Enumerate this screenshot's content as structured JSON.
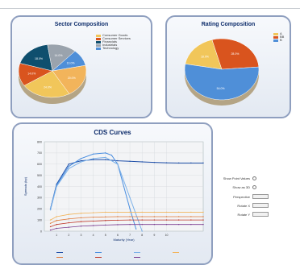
{
  "colors": {
    "pie_palette": [
      "#f1c65a",
      "#d9541e",
      "#0f4f6e",
      "#9aa3ad",
      "#4f8fd8",
      "#f2b45b"
    ],
    "panel_border": "#8f9fbf",
    "title": "#0d2c6b"
  },
  "chart_data": [
    {
      "type": "pie",
      "title": "Sector Composition",
      "legend_position": "right",
      "slices": [
        {
          "name": "Consumer Goods",
          "value": 24,
          "label": "24.0%"
        },
        {
          "name": "Consumer Services",
          "value": 14,
          "label": "14.0%"
        },
        {
          "name": "Financials",
          "value": 18,
          "label": "18.0%"
        },
        {
          "name": "Industrials",
          "value": 14,
          "label": "14.0%"
        },
        {
          "name": "Technology",
          "value": 10,
          "label": "10.0%"
        },
        {
          "name": "",
          "value": 20,
          "label": "20.0%"
        }
      ]
    },
    {
      "type": "pie",
      "title": "Rating Composition",
      "legend_position": "right",
      "slices": [
        {
          "name": "A",
          "value": 18,
          "label": "18.0%"
        },
        {
          "name": "BB",
          "value": 28,
          "label": "28.0%"
        },
        {
          "name": "B",
          "value": 54,
          "label": "54.0%"
        }
      ]
    },
    {
      "type": "line",
      "title": "CDS Curves",
      "xlabel": "Maturity (Year)",
      "ylabel": "Spreads (bp)",
      "xlim": [
        0,
        13
      ],
      "ylim": [
        0,
        800
      ],
      "x_ticks": [
        1,
        2,
        3,
        4,
        5,
        6,
        7,
        8,
        9,
        10
      ],
      "y_ticks": [
        0,
        100,
        200,
        300,
        400,
        500,
        600,
        700,
        800
      ],
      "grid": true,
      "series": [
        {
          "color": "#1f4fa8",
          "x": [
            0.5,
            1,
            2,
            3,
            4,
            5,
            6,
            7,
            8,
            9,
            10,
            11,
            12,
            13
          ],
          "y": [
            200,
            420,
            600,
            630,
            640,
            640,
            630,
            625,
            620,
            615,
            612,
            610,
            610,
            610
          ]
        },
        {
          "color": "#4a8ee0",
          "x": [
            0.5,
            1,
            2,
            3,
            4,
            5,
            5.5,
            6,
            7,
            7.5
          ],
          "y": [
            200,
            410,
            580,
            650,
            690,
            700,
            680,
            600,
            200,
            20
          ]
        },
        {
          "color": "#7ab0e8",
          "x": [
            0.5,
            1,
            2,
            3,
            4,
            5,
            6,
            7,
            8
          ],
          "y": [
            190,
            400,
            560,
            620,
            650,
            660,
            600,
            300,
            0
          ]
        },
        {
          "color": "#f2b45b",
          "x": [
            0.5,
            1,
            2,
            3,
            4,
            5,
            6,
            7,
            8,
            9,
            10,
            11,
            12,
            13
          ],
          "y": [
            100,
            130,
            150,
            160,
            165,
            170,
            170,
            170,
            170,
            170,
            170,
            170,
            170,
            170
          ]
        },
        {
          "color": "#e07a3a",
          "x": [
            0.5,
            1,
            2,
            3,
            4,
            5,
            6,
            7,
            8,
            9,
            10,
            11,
            12,
            13
          ],
          "y": [
            70,
            95,
            110,
            120,
            125,
            128,
            130,
            130,
            130,
            130,
            130,
            130,
            130,
            130
          ]
        },
        {
          "color": "#c0392b",
          "x": [
            0.5,
            1,
            2,
            3,
            4,
            5,
            6,
            7,
            8,
            9,
            10,
            11,
            12,
            13
          ],
          "y": [
            40,
            60,
            75,
            85,
            90,
            95,
            98,
            100,
            100,
            100,
            100,
            100,
            100,
            100
          ]
        },
        {
          "color": "#7a3b8f",
          "x": [
            0.5,
            1,
            2,
            3,
            4,
            5,
            6,
            7,
            8,
            9,
            10,
            11,
            12,
            13
          ],
          "y": [
            10,
            25,
            35,
            45,
            50,
            55,
            58,
            60,
            60,
            60,
            60,
            60,
            60,
            60
          ]
        }
      ]
    }
  ],
  "controls": {
    "items": [
      {
        "label": "Show Point Values",
        "kind": "radio"
      },
      {
        "label": "Show as 3D",
        "kind": "radio"
      },
      {
        "label": "Perspective",
        "kind": "box"
      },
      {
        "label": "Rotate X",
        "kind": "box"
      },
      {
        "label": "Rotate Y",
        "kind": "box"
      }
    ]
  }
}
